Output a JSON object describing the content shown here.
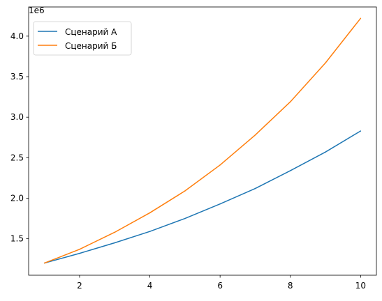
{
  "chart_data": {
    "type": "line",
    "offset_label": "1e6",
    "x": [
      1,
      2,
      3,
      4,
      5,
      6,
      7,
      8,
      9,
      10
    ],
    "x_ticks": [
      2,
      4,
      6,
      8,
      10
    ],
    "x_tick_labels": [
      "2",
      "4",
      "6",
      "8",
      "10"
    ],
    "y_ticks": [
      1.5,
      2.0,
      2.5,
      3.0,
      3.5,
      4.0
    ],
    "y_tick_labels": [
      "1.5",
      "2.0",
      "2.5",
      "3.0",
      "3.5",
      "4.0"
    ],
    "xlim": [
      0.55,
      10.45
    ],
    "ylim": [
      1.05,
      4.36
    ],
    "grid": false,
    "legend_position": "upper-left",
    "series": [
      {
        "name": "Сценарий А",
        "color": "#1f77b4",
        "values": [
          1.2,
          1.32,
          1.45,
          1.59,
          1.75,
          1.93,
          2.12,
          2.34,
          2.57,
          2.83
        ]
      },
      {
        "name": "Сценарий Б",
        "color": "#ff7f0e",
        "values": [
          1.2,
          1.37,
          1.58,
          1.82,
          2.09,
          2.41,
          2.78,
          3.19,
          3.67,
          4.22
        ]
      }
    ]
  }
}
